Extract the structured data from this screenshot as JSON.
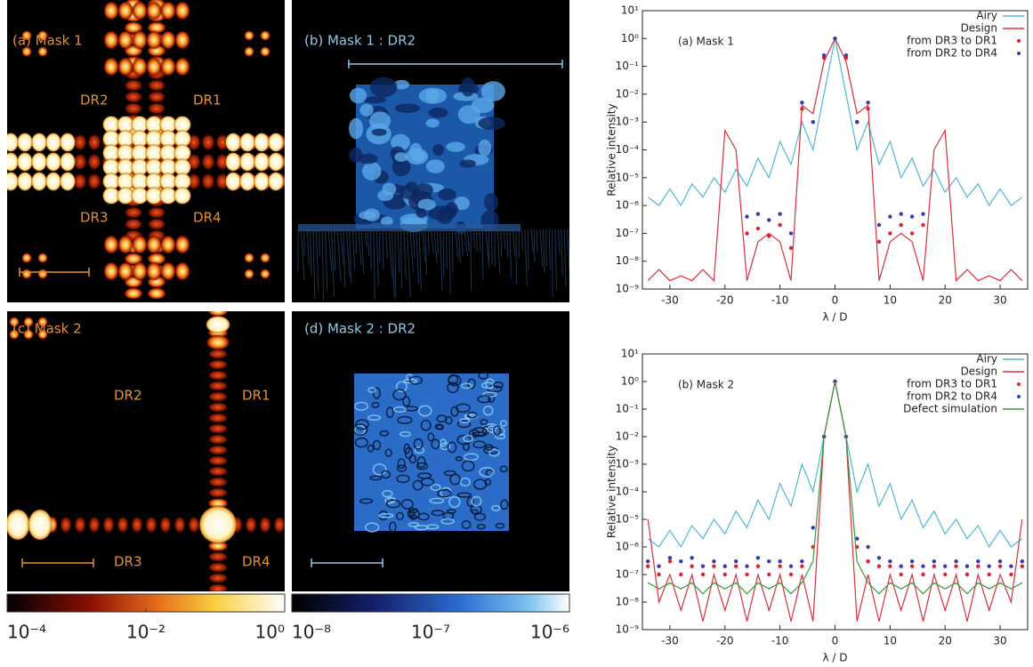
{
  "panels": [
    {
      "label": "(a) Mask 1",
      "regions": [
        "DR2",
        "DR1",
        "DR3",
        "DR4"
      ]
    },
    {
      "label": "(b) Mask 1 : DR2"
    },
    {
      "label": "(c) Mask 2",
      "regions": [
        "DR2",
        "DR1",
        "DR3",
        "DR4"
      ]
    },
    {
      "label": "(d) Mask 2 : DR2"
    }
  ],
  "colorbars": [
    {
      "lim": [
        0.0001,
        1
      ],
      "ticks": [
        {
          "value": 0.0001,
          "label": "10⁻⁴"
        },
        {
          "value": 0.01,
          "label": "10⁻²"
        },
        {
          "value": 1,
          "label": "10⁰"
        }
      ]
    },
    {
      "lim": [
        1e-08,
        1e-06
      ],
      "ticks": [
        {
          "value": 1e-08,
          "label": "10⁻⁸"
        },
        {
          "value": 1e-07,
          "label": "10⁻⁷"
        },
        {
          "value": 1e-06,
          "label": "10⁻⁶"
        }
      ]
    }
  ],
  "chart_data": [
    {
      "type": "line",
      "title": "(a) Mask 1",
      "xlabel": "λ / D",
      "ylabel": "Relative intensity",
      "log_y": true,
      "legend": "upper right",
      "xlim": [
        -35,
        35
      ],
      "xticks": [
        -30,
        -20,
        -10,
        0,
        10,
        20,
        30
      ],
      "ylim": [
        1e-09,
        10
      ],
      "yticks": [
        {
          "value": 10,
          "label": "10¹"
        },
        {
          "value": 1,
          "label": "10⁰"
        },
        {
          "value": 0.1,
          "label": "10⁻¹"
        },
        {
          "value": 0.01,
          "label": "10⁻²"
        },
        {
          "value": 0.001,
          "label": "10⁻³"
        },
        {
          "value": 0.0001,
          "label": "10⁻⁴"
        },
        {
          "value": 1e-05,
          "label": "10⁻⁵"
        },
        {
          "value": 1e-06,
          "label": "10⁻⁶"
        },
        {
          "value": 1e-07,
          "label": "10⁻⁷"
        },
        {
          "value": 1e-08,
          "label": "10⁻⁸"
        },
        {
          "value": 1e-09,
          "label": "10⁻⁹"
        }
      ],
      "x": [
        -34,
        -32,
        -30,
        -28,
        -26,
        -24,
        -22,
        -20,
        -18,
        -16,
        -14,
        -12,
        -10,
        -8,
        -6,
        -4,
        -2,
        0,
        2,
        4,
        6,
        8,
        10,
        12,
        14,
        16,
        18,
        20,
        22,
        24,
        26,
        28,
        30,
        32,
        34
      ],
      "series": [
        {
          "name": "Airy",
          "color": "#4fb8d4",
          "style": "line",
          "values": [
            2e-06,
            1e-06,
            4e-06,
            1e-06,
            6e-06,
            2e-06,
            1e-05,
            3e-06,
            2e-05,
            5e-06,
            5e-05,
            1e-05,
            0.0002,
            3e-05,
            0.001,
            0.0001,
            0.01,
            1,
            0.01,
            0.0001,
            0.001,
            3e-05,
            0.0002,
            1e-05,
            5e-05,
            5e-06,
            2e-05,
            3e-06,
            1e-05,
            2e-06,
            6e-06,
            1e-06,
            4e-06,
            1e-06,
            2e-06
          ]
        },
        {
          "name": "Design",
          "color": "#d8303c",
          "style": "line",
          "values": [
            2e-09,
            5e-09,
            2e-09,
            3e-09,
            2e-09,
            5e-09,
            2e-09,
            0.0005,
            0.0001,
            2e-09,
            5e-08,
            1e-07,
            5e-08,
            2e-09,
            0.004,
            0.002,
            0.15,
            1,
            0.15,
            0.002,
            0.004,
            2e-09,
            5e-08,
            1e-07,
            5e-08,
            2e-09,
            0.0001,
            0.0005,
            2e-09,
            5e-09,
            2e-09,
            3e-09,
            2e-09,
            5e-09,
            2e-09
          ]
        },
        {
          "name": "from DR3 to DR1",
          "color": "#e0202c",
          "style": "points",
          "values": [
            null,
            null,
            null,
            null,
            null,
            null,
            null,
            null,
            null,
            1e-07,
            1.5e-07,
            8e-08,
            2e-07,
            3e-08,
            0.003,
            0.001,
            0.2,
            1,
            0.2,
            0.001,
            0.003,
            5e-08,
            1e-07,
            2e-07,
            1e-07,
            2e-07,
            null,
            null,
            null,
            null,
            null,
            null,
            null,
            null,
            null
          ]
        },
        {
          "name": "from DR2 to DR4",
          "color": "#3a3ab0",
          "style": "points",
          "values": [
            null,
            null,
            null,
            null,
            null,
            null,
            null,
            null,
            null,
            4e-07,
            5e-07,
            3e-07,
            5e-07,
            1e-07,
            0.005,
            0.001,
            0.25,
            1,
            0.25,
            0.001,
            0.005,
            2e-07,
            4e-07,
            5e-07,
            4e-07,
            5e-07,
            null,
            null,
            null,
            null,
            null,
            null,
            null,
            null,
            null
          ]
        }
      ]
    },
    {
      "type": "line",
      "title": "(b) Mask 2",
      "xlabel": "λ / D",
      "ylabel": "Relative intensity",
      "log_y": true,
      "legend": "upper right",
      "xlim": [
        -35,
        35
      ],
      "xticks": [
        -30,
        -20,
        -10,
        0,
        10,
        20,
        30
      ],
      "ylim": [
        1e-09,
        10
      ],
      "yticks": [
        {
          "value": 10,
          "label": "10¹"
        },
        {
          "value": 1,
          "label": "10⁰"
        },
        {
          "value": 0.1,
          "label": "10⁻¹"
        },
        {
          "value": 0.01,
          "label": "10⁻²"
        },
        {
          "value": 0.001,
          "label": "10⁻³"
        },
        {
          "value": 0.0001,
          "label": "10⁻⁴"
        },
        {
          "value": 1e-05,
          "label": "10⁻⁵"
        },
        {
          "value": 1e-06,
          "label": "10⁻⁶"
        },
        {
          "value": 1e-07,
          "label": "10⁻⁷"
        },
        {
          "value": 1e-08,
          "label": "10⁻⁸"
        },
        {
          "value": 1e-09,
          "label": "10⁻⁹"
        }
      ],
      "x": [
        -34,
        -32,
        -30,
        -28,
        -26,
        -24,
        -22,
        -20,
        -18,
        -16,
        -14,
        -12,
        -10,
        -8,
        -6,
        -4,
        -2,
        0,
        2,
        4,
        6,
        8,
        10,
        12,
        14,
        16,
        18,
        20,
        22,
        24,
        26,
        28,
        30,
        32,
        34
      ],
      "series": [
        {
          "name": "Airy",
          "color": "#4fb8d4",
          "style": "line",
          "values": [
            2e-06,
            1e-06,
            4e-06,
            1e-06,
            6e-06,
            2e-06,
            1e-05,
            3e-06,
            2e-05,
            5e-06,
            5e-05,
            1e-05,
            0.0002,
            3e-05,
            0.001,
            0.0001,
            0.01,
            1,
            0.01,
            0.0001,
            0.001,
            3e-05,
            0.0002,
            1e-05,
            5e-05,
            5e-06,
            2e-05,
            3e-06,
            1e-05,
            2e-06,
            6e-06,
            1e-06,
            4e-06,
            1e-06,
            2e-06
          ]
        },
        {
          "name": "Design",
          "color": "#d8303c",
          "style": "line",
          "values": [
            1e-05,
            1e-08,
            1e-07,
            5e-09,
            1e-07,
            2e-09,
            1e-07,
            5e-09,
            1e-07,
            2e-09,
            1e-07,
            5e-09,
            1e-07,
            2e-09,
            1e-07,
            2e-09,
            0.01,
            1,
            0.01,
            2e-09,
            1e-07,
            2e-09,
            1e-07,
            5e-09,
            1e-07,
            2e-09,
            1e-07,
            5e-09,
            1e-07,
            2e-09,
            1e-07,
            5e-09,
            1e-07,
            1e-08,
            1e-05
          ]
        },
        {
          "name": "from DR3 to DR1",
          "color": "#e0202c",
          "style": "points",
          "values": [
            2e-07,
            1e-07,
            3e-07,
            1e-07,
            2e-07,
            1e-07,
            2e-07,
            1e-07,
            2e-07,
            1e-07,
            2e-07,
            1e-07,
            2e-07,
            1e-07,
            2e-07,
            1e-06,
            0.01,
            1,
            0.01,
            1e-06,
            3e-07,
            2e-07,
            2e-07,
            1e-07,
            2e-07,
            1e-07,
            2e-07,
            1e-07,
            2e-07,
            1e-07,
            2e-07,
            1e-07,
            2e-07,
            1e-07,
            2e-07
          ]
        },
        {
          "name": "from DR2 to DR4",
          "color": "#3a3ab0",
          "style": "points",
          "values": [
            3e-07,
            2e-07,
            4e-07,
            3e-07,
            4e-07,
            2e-07,
            3e-07,
            2e-07,
            3e-07,
            2e-07,
            4e-07,
            3e-07,
            3e-07,
            2e-07,
            3e-07,
            5e-06,
            0.01,
            1,
            0.01,
            2e-06,
            1e-06,
            4e-07,
            3e-07,
            2e-07,
            3e-07,
            2e-07,
            3e-07,
            2e-07,
            3e-07,
            2e-07,
            3e-07,
            2e-07,
            3e-07,
            2e-07,
            3e-07
          ]
        },
        {
          "name": "Defect simulation",
          "color": "#3a9a3a",
          "style": "line",
          "values": [
            5e-08,
            3e-08,
            5e-08,
            3e-08,
            5e-08,
            2e-08,
            5e-08,
            3e-08,
            5e-08,
            2e-08,
            5e-08,
            3e-08,
            5e-08,
            2e-08,
            5e-08,
            3e-07,
            0.01,
            1,
            0.01,
            3e-07,
            5e-08,
            2e-08,
            5e-08,
            3e-08,
            5e-08,
            2e-08,
            5e-08,
            3e-08,
            5e-08,
            2e-08,
            5e-08,
            3e-08,
            5e-08,
            3e-08,
            5e-08
          ]
        }
      ]
    }
  ]
}
